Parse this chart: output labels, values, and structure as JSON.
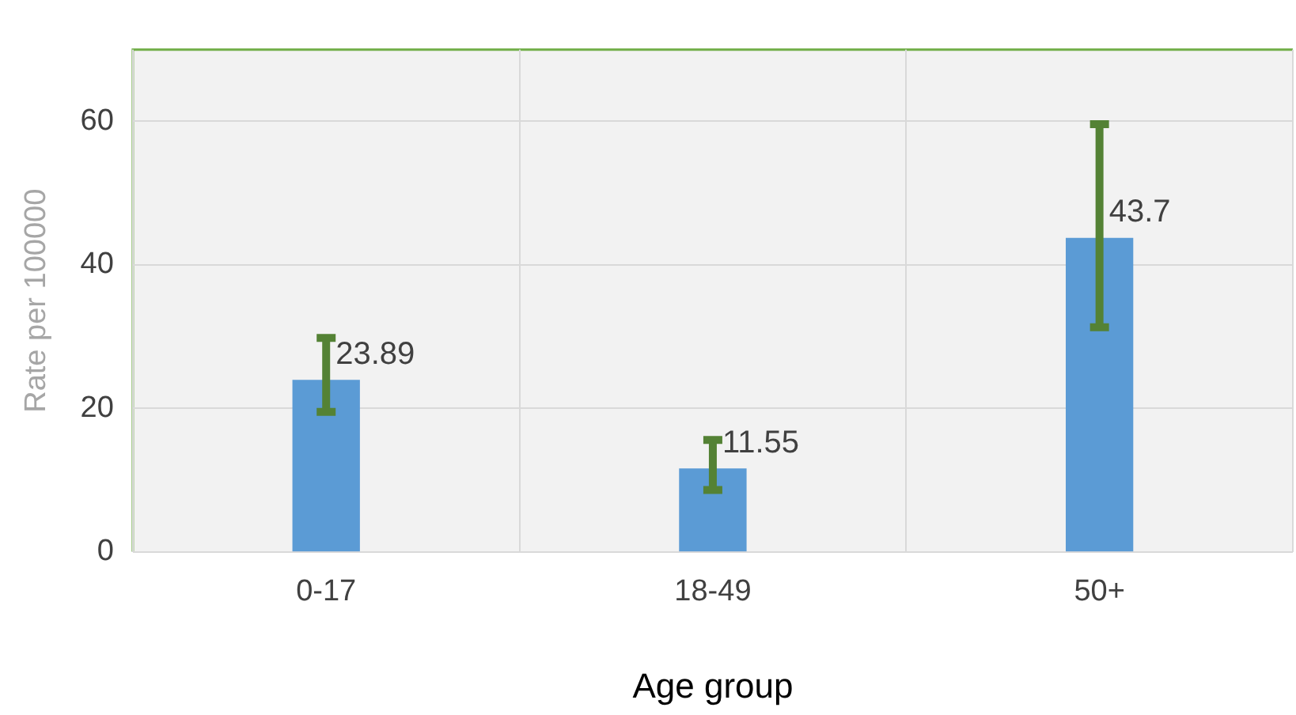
{
  "chart_data": {
    "type": "bar",
    "xlabel": "Age group",
    "ylabel": "Rate per 100000",
    "categories": [
      "0-17",
      "18-49",
      "50+"
    ],
    "values": [
      23.89,
      11.55,
      43.7
    ],
    "color": "#5b9bd5",
    "errors": [
      [
        19.5,
        29.8
      ],
      [
        8.6,
        15.6
      ],
      [
        31.3,
        59.6
      ]
    ],
    "ylim": [
      0,
      70
    ],
    "yticks": [
      0,
      20,
      40,
      60
    ],
    "grid": true,
    "data_labels": true
  }
}
